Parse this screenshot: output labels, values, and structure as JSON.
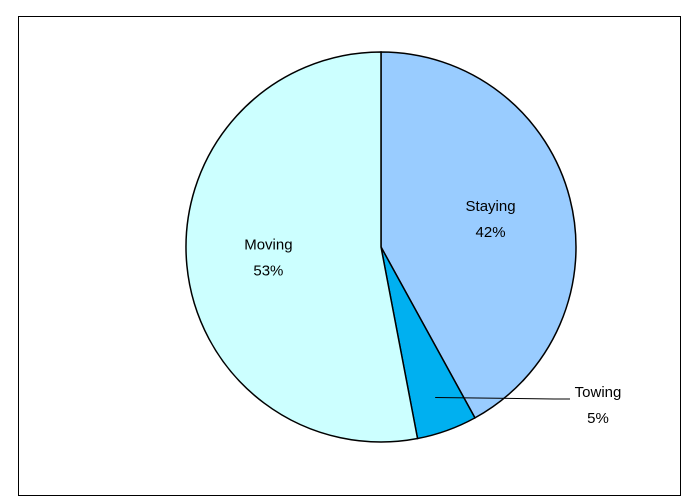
{
  "chart_data": {
    "type": "pie",
    "title": "",
    "start_angle_deg": 0,
    "direction": "clockwise",
    "slices": [
      {
        "label": "Staying",
        "value": 42,
        "percent_label": "42%",
        "color": "#99ccff",
        "label_placement": "inside"
      },
      {
        "label": "Towing",
        "value": 5,
        "percent_label": "5%",
        "color": "#00b0f0",
        "label_placement": "outside-leader"
      },
      {
        "label": "Moving",
        "value": 53,
        "percent_label": "53%",
        "color": "#ccffff",
        "label_placement": "inside"
      }
    ],
    "legend": "none",
    "border_color": "#000000"
  }
}
